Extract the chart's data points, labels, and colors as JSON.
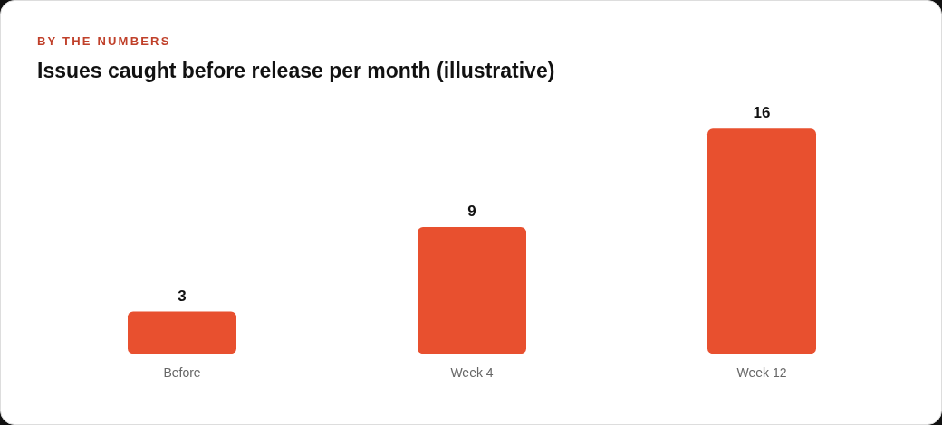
{
  "chart_data": {
    "type": "bar",
    "subtitle": "BY THE NUMBERS",
    "title": "Issues caught before release per month (illustrative)",
    "categories": [
      "Before",
      "Week 4",
      "Week 12"
    ],
    "values": [
      3,
      9,
      16
    ],
    "color": "#e8502f",
    "data_labels": true,
    "grid": false,
    "legend": false
  }
}
